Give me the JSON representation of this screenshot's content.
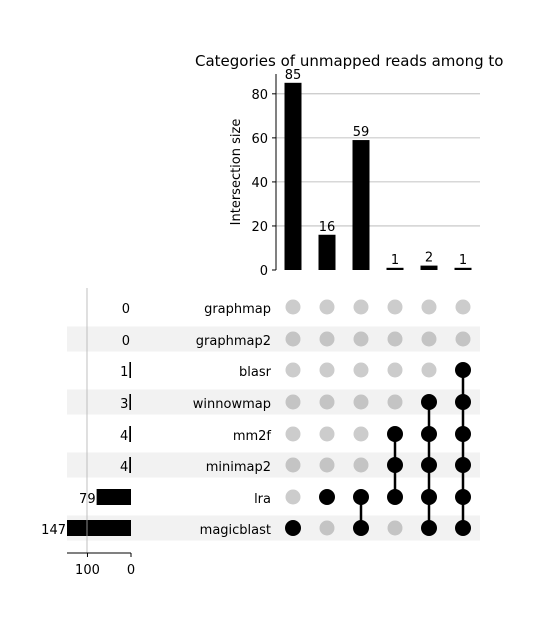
{
  "chart_data": {
    "type": "upset",
    "title": "Categories of unmapped reads among to",
    "ylabel": "Intersection size",
    "ylim": [
      0,
      89
    ],
    "yticks": [
      0,
      20,
      40,
      60,
      80
    ],
    "grid": true,
    "sets": [
      "graphmap",
      "graphmap2",
      "blasr",
      "winnowmap",
      "mm2f",
      "minimap2",
      "lra",
      "magicblast"
    ],
    "set_sizes": [
      0,
      0,
      1,
      3,
      4,
      4,
      79,
      147
    ],
    "set_size_ticks": [
      100,
      0
    ],
    "set_size_lim": [
      0,
      147
    ],
    "intersections": [
      {
        "size": 85,
        "members": [
          "magicblast"
        ]
      },
      {
        "size": 16,
        "members": [
          "lra"
        ]
      },
      {
        "size": 59,
        "members": [
          "lra",
          "magicblast"
        ]
      },
      {
        "size": 1,
        "members": [
          "mm2f",
          "minimap2",
          "lra"
        ]
      },
      {
        "size": 2,
        "members": [
          "winnowmap",
          "mm2f",
          "minimap2",
          "lra",
          "magicblast"
        ]
      },
      {
        "size": 1,
        "members": [
          "blasr",
          "winnowmap",
          "mm2f",
          "minimap2",
          "lra",
          "magicblast"
        ]
      }
    ],
    "colors": {
      "bar": "#000000",
      "dot_on": "#000000",
      "dot_off": "#cccccc",
      "dot_off_alt": "#c4c4c4",
      "stripe": "#f2f2f2",
      "grid": "#b0b0b0"
    }
  }
}
